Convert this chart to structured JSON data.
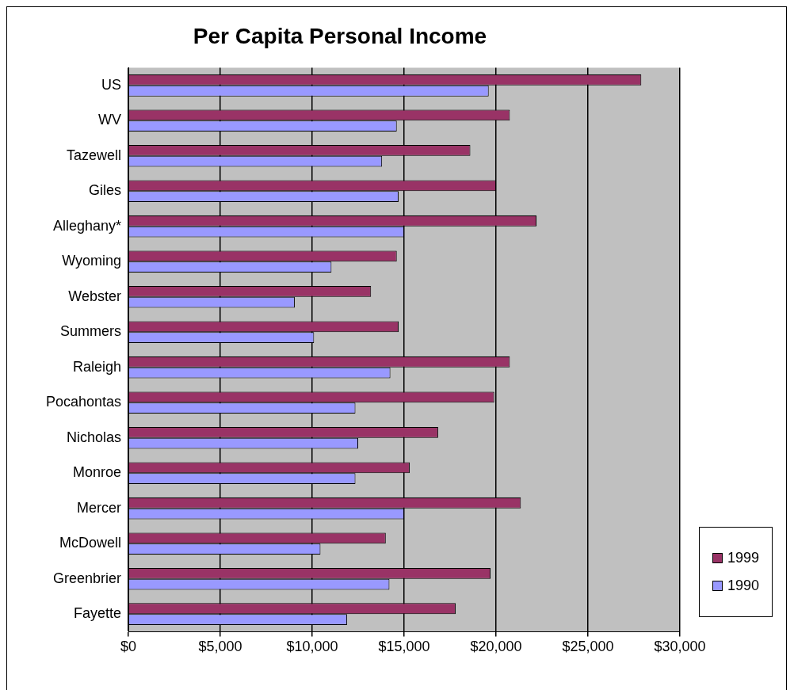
{
  "chart_data": {
    "type": "bar",
    "orientation": "horizontal",
    "title": "Per Capita Personal Income",
    "categories": [
      "US",
      "WV",
      "Tazewell",
      "Giles",
      "Alleghany*",
      "Wyoming",
      "Webster",
      "Summers",
      "Raleigh",
      "Pocahontas",
      "Nicholas",
      "Monroe",
      "Mercer",
      "McDowell",
      "Greenbrier",
      "Fayette"
    ],
    "series": [
      {
        "name": "1999",
        "color": "#993366",
        "values": [
          27900,
          20750,
          18600,
          20000,
          22200,
          14600,
          13200,
          14700,
          20750,
          19900,
          16850,
          15300,
          21350,
          14000,
          19700,
          17800
        ]
      },
      {
        "name": "1990",
        "color": "#9999ff",
        "values": [
          19600,
          14600,
          13800,
          14700,
          15000,
          11050,
          9050,
          10100,
          14250,
          12350,
          12500,
          12350,
          15000,
          10450,
          14200,
          11900
        ]
      }
    ],
    "xlim": [
      0,
      30000
    ],
    "xticks": [
      {
        "value": 0,
        "label": "$0"
      },
      {
        "value": 5000,
        "label": "$5,000"
      },
      {
        "value": 10000,
        "label": "$10,000"
      },
      {
        "value": 15000,
        "label": "$15,000"
      },
      {
        "value": 20000,
        "label": "$20,000"
      },
      {
        "value": 25000,
        "label": "$25,000"
      },
      {
        "value": 30000,
        "label": "$30,000"
      }
    ],
    "grid": "x",
    "legend": "bottom right"
  }
}
